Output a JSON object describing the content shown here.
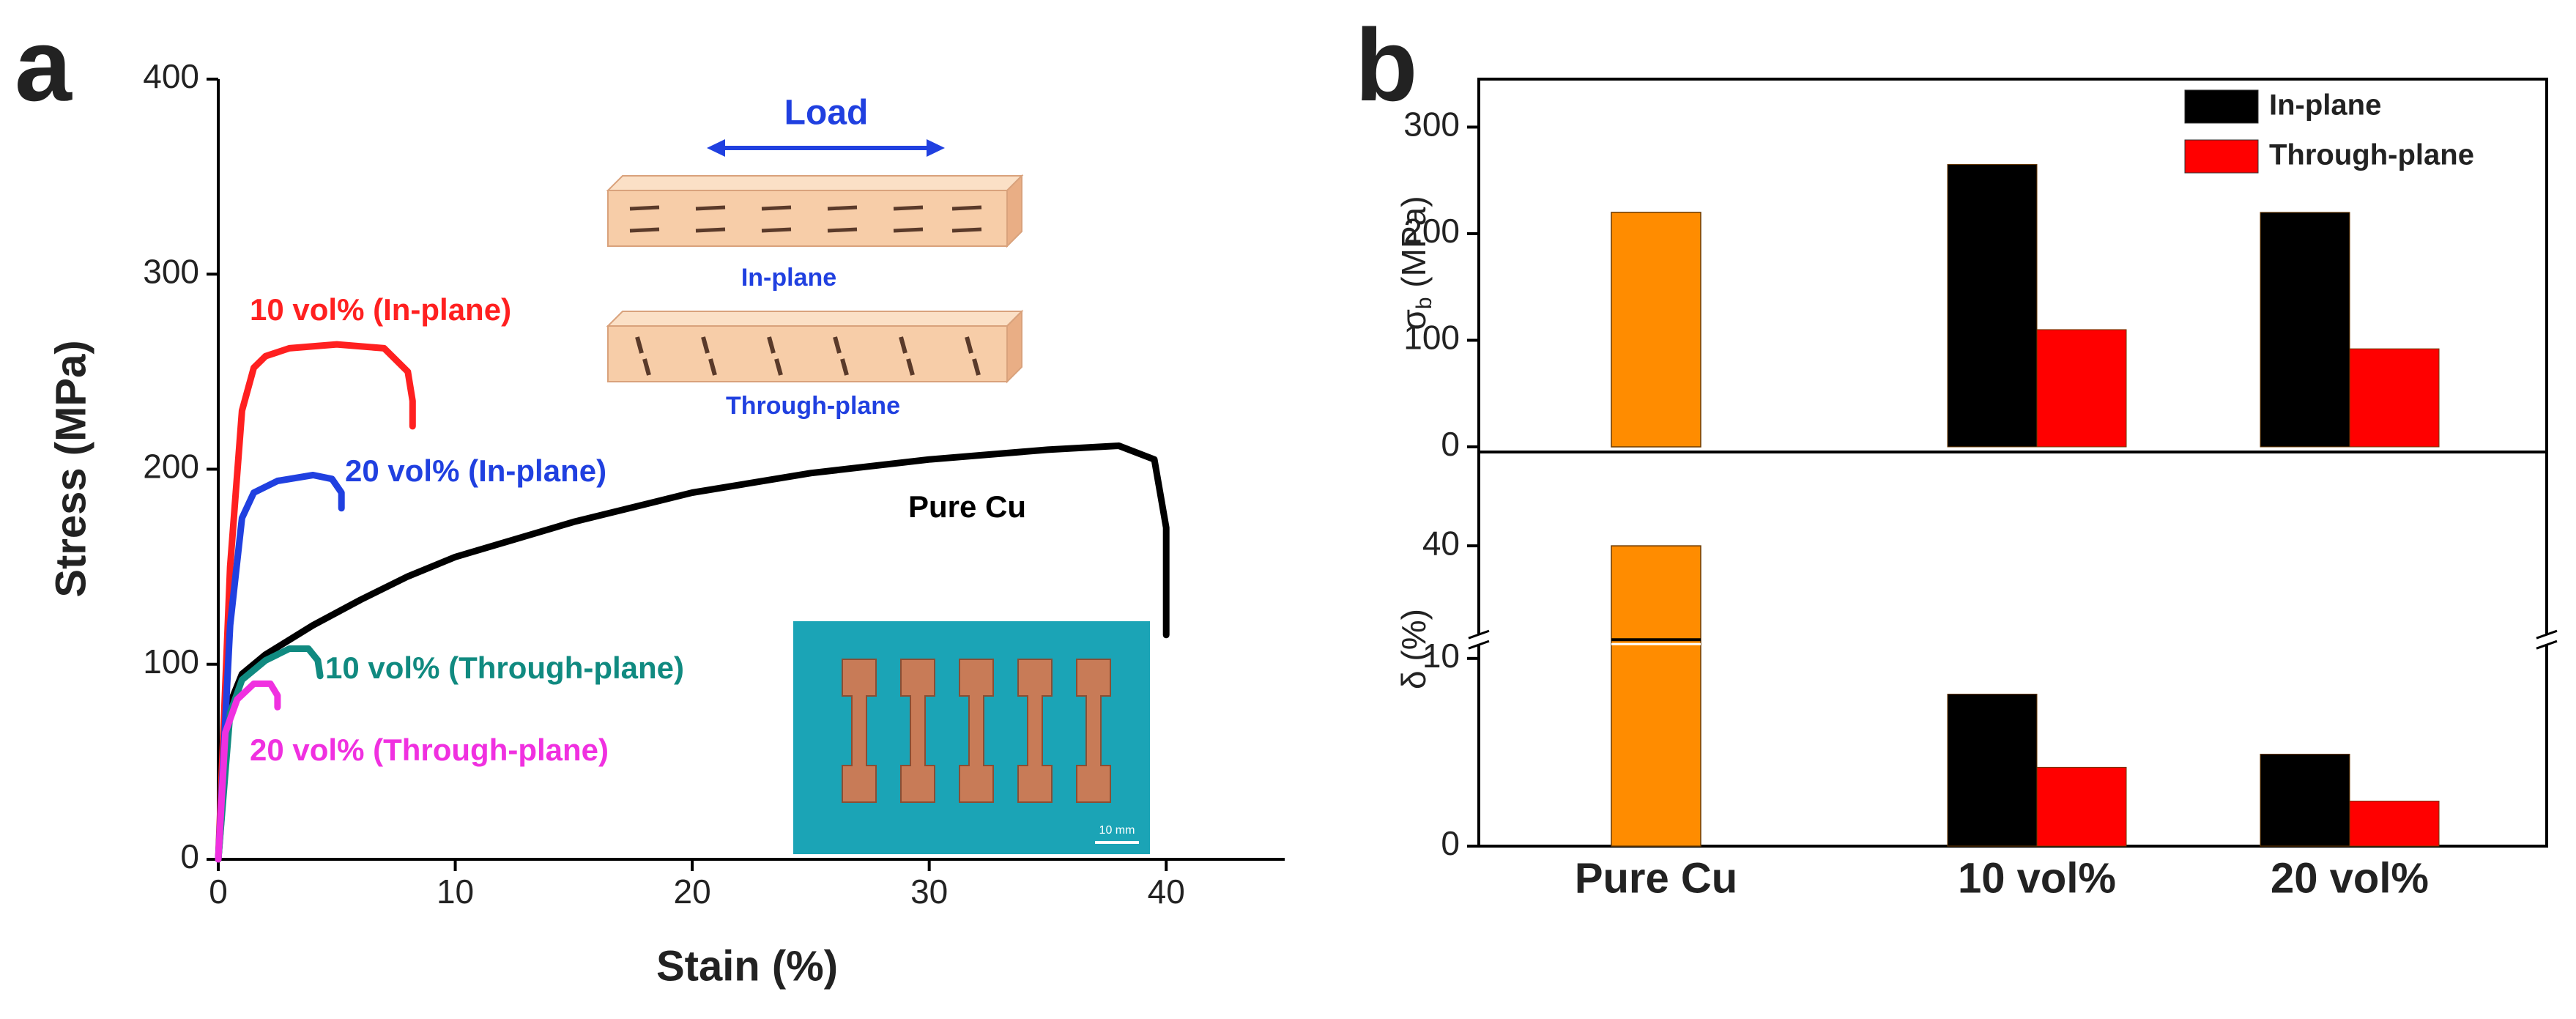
{
  "chart_data": [
    {
      "type": "line",
      "label": "a",
      "xlabel": "Stain (%)",
      "ylabel": "Stress (MPa)",
      "xlim": [
        0,
        45
      ],
      "xticks": [
        0,
        10,
        20,
        30,
        40
      ],
      "ylim": [
        0,
        400
      ],
      "yticks": [
        0,
        100,
        200,
        300,
        400
      ],
      "series": [
        {
          "name": "Pure Cu",
          "color": "#000000",
          "x": [
            0,
            0.5,
            1,
            2,
            4,
            6,
            8,
            10,
            15,
            20,
            25,
            30,
            35,
            38,
            39.5,
            40,
            40
          ],
          "values": [
            0,
            80,
            95,
            105,
            120,
            133,
            145,
            155,
            173,
            188,
            198,
            205,
            210,
            212,
            205,
            170,
            115
          ]
        },
        {
          "name": "10 vol% (In-plane)",
          "color": "#ff2020",
          "x": [
            0,
            0.5,
            1,
            1.5,
            2,
            3,
            5,
            7,
            8,
            8.2,
            8.2
          ],
          "values": [
            0,
            150,
            230,
            252,
            258,
            262,
            264,
            262,
            250,
            235,
            222
          ]
        },
        {
          "name": "20 vol% (In-plane)",
          "color": "#2040e0",
          "x": [
            0,
            0.5,
            1,
            1.5,
            2.5,
            4,
            4.8,
            5.2,
            5.2
          ],
          "values": [
            0,
            120,
            175,
            188,
            194,
            197,
            195,
            188,
            180
          ]
        },
        {
          "name": "10 vol% (Through-plane)",
          "color": "#108a80",
          "x": [
            0,
            0.5,
            1,
            2,
            3,
            3.8,
            4.2,
            4.3
          ],
          "values": [
            0,
            75,
            92,
            102,
            108,
            108,
            102,
            94
          ]
        },
        {
          "name": "20 vol% (Through-plane)",
          "color": "#f030e0",
          "x": [
            0,
            0.3,
            0.8,
            1.5,
            2.2,
            2.5,
            2.5
          ],
          "values": [
            0,
            65,
            82,
            90,
            90,
            84,
            78
          ]
        }
      ],
      "annotations": [
        "Load",
        "In-plane",
        "Through-plane",
        "10 mm"
      ]
    },
    {
      "type": "bar",
      "label": "b",
      "ylabel": [
        "σ",
        "b",
        " (MPa)"
      ],
      "ylim": [
        0,
        345
      ],
      "yticks": [
        0,
        100,
        200,
        300
      ],
      "series": [
        {
          "name": "In-plane",
          "color": "#000000",
          "values": [
            null,
            265,
            220
          ]
        },
        {
          "name": "Through-plane",
          "color": "#ff0000",
          "values": [
            null,
            110,
            92
          ]
        },
        {
          "color": "#ff8c00",
          "values": [
            220,
            null,
            null
          ]
        }
      ]
    },
    {
      "type": "bar",
      "ylabel": "δ (%)",
      "categories": [
        "Pure Cu",
        "10 vol%",
        "20 vol%"
      ],
      "ylim": [
        0,
        45
      ],
      "ybreak": [
        11,
        35
      ],
      "yticks": [
        0,
        10,
        40
      ],
      "series": [
        {
          "color": "#000000",
          "values": [
            null,
            8.1,
            4.9
          ]
        },
        {
          "color": "#ff0000",
          "values": [
            null,
            4.2,
            2.4
          ]
        },
        {
          "color": "#ff8c00",
          "values": [
            40,
            null,
            null
          ]
        }
      ]
    }
  ]
}
